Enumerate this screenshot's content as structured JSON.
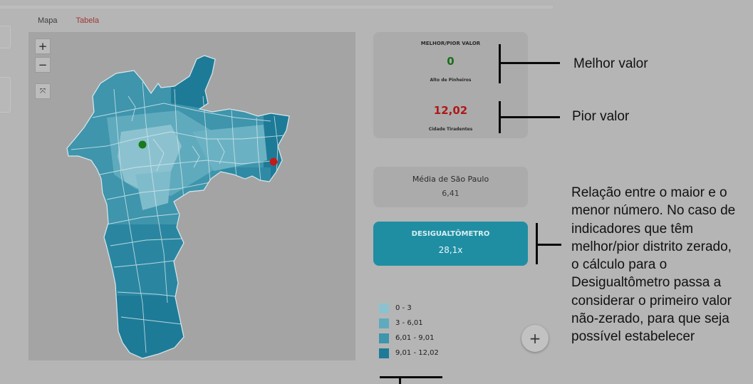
{
  "tabs": {
    "mapa": "Mapa",
    "tabela": "Tabela"
  },
  "map_controls": {
    "zoom_in": "+",
    "zoom_out": "−",
    "fullscreen": "⤧"
  },
  "best_worst": {
    "title": "MELHOR/PIOR VALOR",
    "best_value": "0",
    "best_district": "Alto de Pinheiros",
    "worst_value": "12,02",
    "worst_district": "Cidade Tiradentes"
  },
  "average": {
    "title": "Média de São Paulo",
    "value": "6,41"
  },
  "desigualtometro": {
    "title": "DESIGUALTÔMETRO",
    "value": "28,1x"
  },
  "legend": [
    {
      "label": "0 - 3",
      "color": "#8cc2cf"
    },
    {
      "label": "3 - 6,01",
      "color": "#5fabbd"
    },
    {
      "label": "6,01 - 9,01",
      "color": "#3e95ac"
    },
    {
      "label": "9,01 - 12,02",
      "color": "#1e7b97"
    }
  ],
  "fab": {
    "label": "+"
  },
  "annotations": {
    "best": "Melhor valor",
    "worst": "Pior valor",
    "description": "Relação entre o maior e o menor número. No caso de indicadores que têm melhor/pior distrito zerado, o cálculo para o Desigualtômetro passa a considerar o primeiro valor não-zerado, para que seja possível estabelecer"
  },
  "colors": {
    "best_marker": "#1a7a1a",
    "worst_marker": "#c21b1b",
    "accent": "#1f8ea3"
  }
}
